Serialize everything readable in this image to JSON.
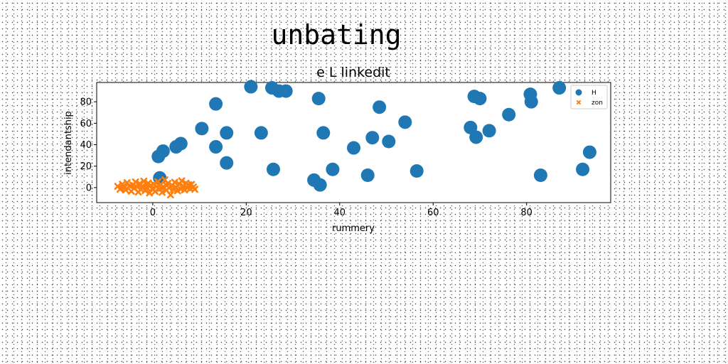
{
  "chart_data": {
    "type": "scatter",
    "suptitle": "unbating",
    "title": "e L linkedit",
    "xlabel": "rummery",
    "ylabel": "intendantship",
    "xlim": [
      -12,
      98
    ],
    "ylim": [
      -14,
      98
    ],
    "xticks": [
      0,
      20,
      40,
      60,
      80
    ],
    "yticks": [
      0,
      20,
      40,
      60,
      80
    ],
    "legend_position": "top-right",
    "series": [
      {
        "name": "H",
        "marker": "circle",
        "color": "#1f77b4",
        "points": [
          [
            21,
            94
          ],
          [
            25.5,
            93
          ],
          [
            27,
            90
          ],
          [
            28.5,
            90
          ],
          [
            35.5,
            83
          ],
          [
            13.5,
            78
          ],
          [
            48.5,
            75
          ],
          [
            10.5,
            55
          ],
          [
            15.8,
            51
          ],
          [
            23.2,
            51
          ],
          [
            36.5,
            51
          ],
          [
            54,
            61
          ],
          [
            6,
            41
          ],
          [
            5,
            38
          ],
          [
            2.2,
            34
          ],
          [
            1.2,
            29
          ],
          [
            13.5,
            38
          ],
          [
            15.8,
            23
          ],
          [
            25.8,
            17
          ],
          [
            34.5,
            7
          ],
          [
            35.8,
            2.5
          ],
          [
            38.5,
            17
          ],
          [
            43,
            37
          ],
          [
            47,
            46.5
          ],
          [
            46,
            11.5
          ],
          [
            50.5,
            43
          ],
          [
            56.5,
            15.5
          ],
          [
            68,
            56
          ],
          [
            68.8,
            85
          ],
          [
            70,
            83
          ],
          [
            69.2,
            47
          ],
          [
            72,
            53
          ],
          [
            76.2,
            68
          ],
          [
            80.8,
            87
          ],
          [
            81,
            80
          ],
          [
            83,
            11.5
          ],
          [
            87,
            93
          ],
          [
            92,
            17
          ],
          [
            93.5,
            33
          ],
          [
            1.5,
            9
          ]
        ]
      },
      {
        "name": "zon",
        "marker": "x",
        "color": "#ff7f0e",
        "points": [
          [
            -7.5,
            1.2
          ],
          [
            -7,
            -1.5
          ],
          [
            -6.5,
            3.1
          ],
          [
            -6,
            0.4
          ],
          [
            -5.8,
            -2.2
          ],
          [
            -5.5,
            4.6
          ],
          [
            -5,
            1.8
          ],
          [
            -4.6,
            -3.4
          ],
          [
            -4.3,
            2.5
          ],
          [
            -4,
            -0.7
          ],
          [
            -3.7,
            5.3
          ],
          [
            -3.4,
            0.9
          ],
          [
            -3.1,
            -4.1
          ],
          [
            -2.8,
            3.7
          ],
          [
            -2.5,
            -1.9
          ],
          [
            -2.2,
            1.4
          ],
          [
            -1.9,
            6.0
          ],
          [
            -1.6,
            -2.8
          ],
          [
            -1.3,
            0.2
          ],
          [
            -1,
            4.2
          ],
          [
            -0.7,
            -5.0
          ],
          [
            -0.4,
            2.1
          ],
          [
            -0.1,
            -0.9
          ],
          [
            0.2,
            3.3
          ],
          [
            0.5,
            -3.6
          ],
          [
            0.8,
            1.0
          ],
          [
            1.1,
            5.5
          ],
          [
            1.4,
            -1.3
          ],
          [
            1.7,
            2.8
          ],
          [
            2,
            -4.4
          ],
          [
            2.3,
            0.6
          ],
          [
            2.6,
            7.2
          ],
          [
            2.9,
            -2.4
          ],
          [
            3.2,
            3.9
          ],
          [
            3.5,
            -0.3
          ],
          [
            3.8,
            -6.8
          ],
          [
            4.1,
            2.3
          ],
          [
            4.4,
            -1.7
          ],
          [
            4.7,
            5.0
          ],
          [
            5,
            0.1
          ],
          [
            5.3,
            -3.0
          ],
          [
            5.6,
            3.5
          ],
          [
            5.9,
            -0.8
          ],
          [
            6.2,
            6.3
          ],
          [
            6.5,
            1.6
          ],
          [
            6.8,
            -2.1
          ],
          [
            7.1,
            4.1
          ],
          [
            7.4,
            -0.2
          ],
          [
            7.7,
            2.7
          ],
          [
            8,
            -1.1
          ],
          [
            8.3,
            3.0
          ],
          [
            8.7,
            0.5
          ],
          [
            9,
            -1.6
          ],
          [
            -6.8,
            -0.6
          ],
          [
            -3,
            2.2
          ],
          [
            0,
            -1.8
          ],
          [
            3,
            1.9
          ],
          [
            6,
            -1.4
          ],
          [
            -1.2,
            3.0
          ],
          [
            1.9,
            -0.5
          ]
        ]
      }
    ]
  }
}
